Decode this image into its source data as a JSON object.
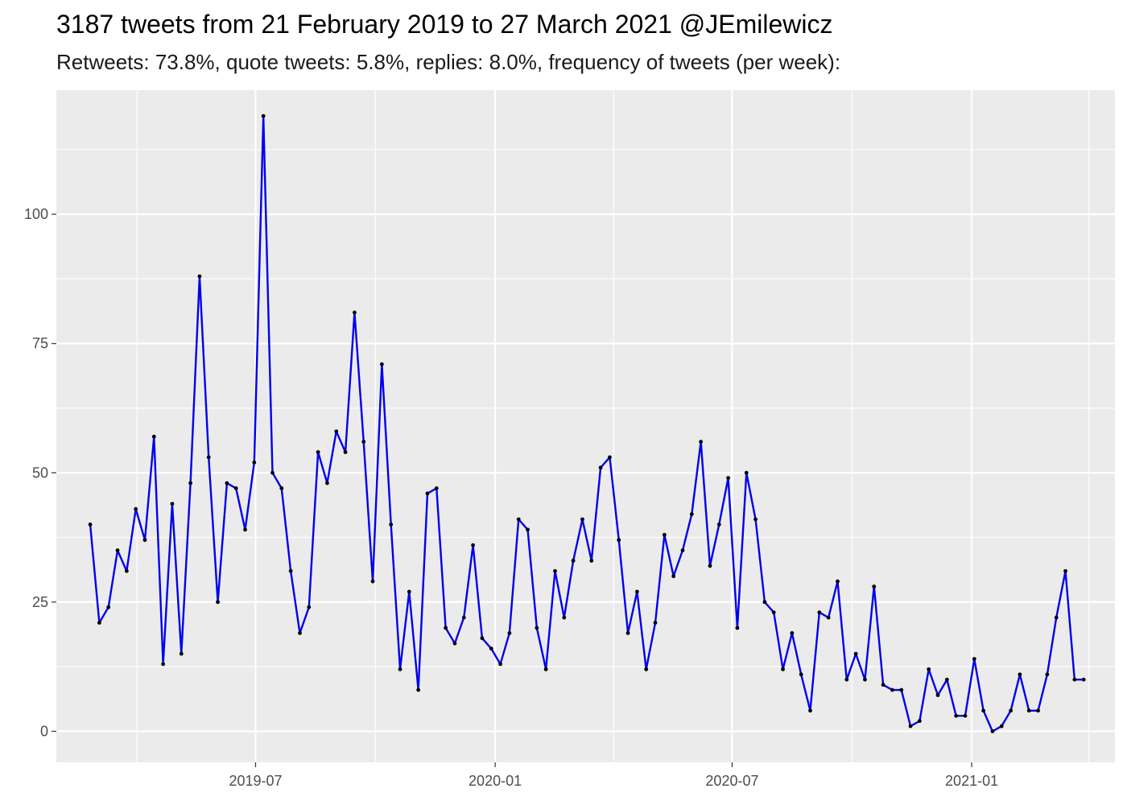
{
  "chart_data": {
    "type": "line",
    "title": "3187 tweets from 21 February 2019 to 27 March 2021 @JEmilewicz",
    "subtitle": "Retweets: 73.8%, quote tweets: 5.8%, replies: 8.0%, frequency of tweets (per week):",
    "xlabel": "",
    "ylabel": "",
    "x_start": "2019-02-24",
    "x_step_days": 7,
    "xlim": [
      "2019-01-29",
      "2021-04-21"
    ],
    "ylim": [
      -6,
      124
    ],
    "xticks": [
      {
        "date": "2019-07-01",
        "label": "2019-07"
      },
      {
        "date": "2020-01-01",
        "label": "2020-01"
      },
      {
        "date": "2020-07-01",
        "label": "2020-07"
      },
      {
        "date": "2021-01-01",
        "label": "2021-01"
      }
    ],
    "xticks_minor": [
      "2019-04-01",
      "2019-10-01",
      "2020-04-01",
      "2020-10-01",
      "2021-04-01"
    ],
    "yticks": [
      0,
      25,
      50,
      75,
      100
    ],
    "yticks_minor": [
      12.5,
      37.5,
      62.5,
      87.5,
      112.5
    ],
    "grid": true,
    "line_color": "#0000ee",
    "point_color": "#000000",
    "panel_color": "#ebebeb",
    "series": [
      {
        "values": [
          40,
          21,
          24,
          35,
          31,
          43,
          37,
          57,
          13,
          44,
          15,
          48,
          88,
          53,
          25,
          48,
          47,
          39,
          52,
          119,
          50,
          47,
          31,
          19,
          24,
          54,
          48,
          58,
          54,
          81,
          56,
          29,
          71,
          40,
          12,
          27,
          8,
          46,
          47,
          20,
          17,
          22,
          36,
          18,
          16,
          13,
          19,
          41,
          39,
          20,
          12,
          31,
          22,
          33,
          41,
          33,
          51,
          53,
          37,
          19,
          27,
          12,
          21,
          38,
          30,
          35,
          42,
          56,
          32,
          40,
          49,
          20,
          50,
          41,
          25,
          23,
          12,
          19,
          11,
          4,
          23,
          22,
          29,
          10,
          15,
          10,
          28,
          9,
          8,
          8,
          1,
          2,
          12,
          7,
          10,
          3,
          3,
          14,
          4,
          0,
          1,
          4,
          11,
          4,
          4,
          11,
          22,
          31,
          10,
          10
        ]
      }
    ]
  }
}
